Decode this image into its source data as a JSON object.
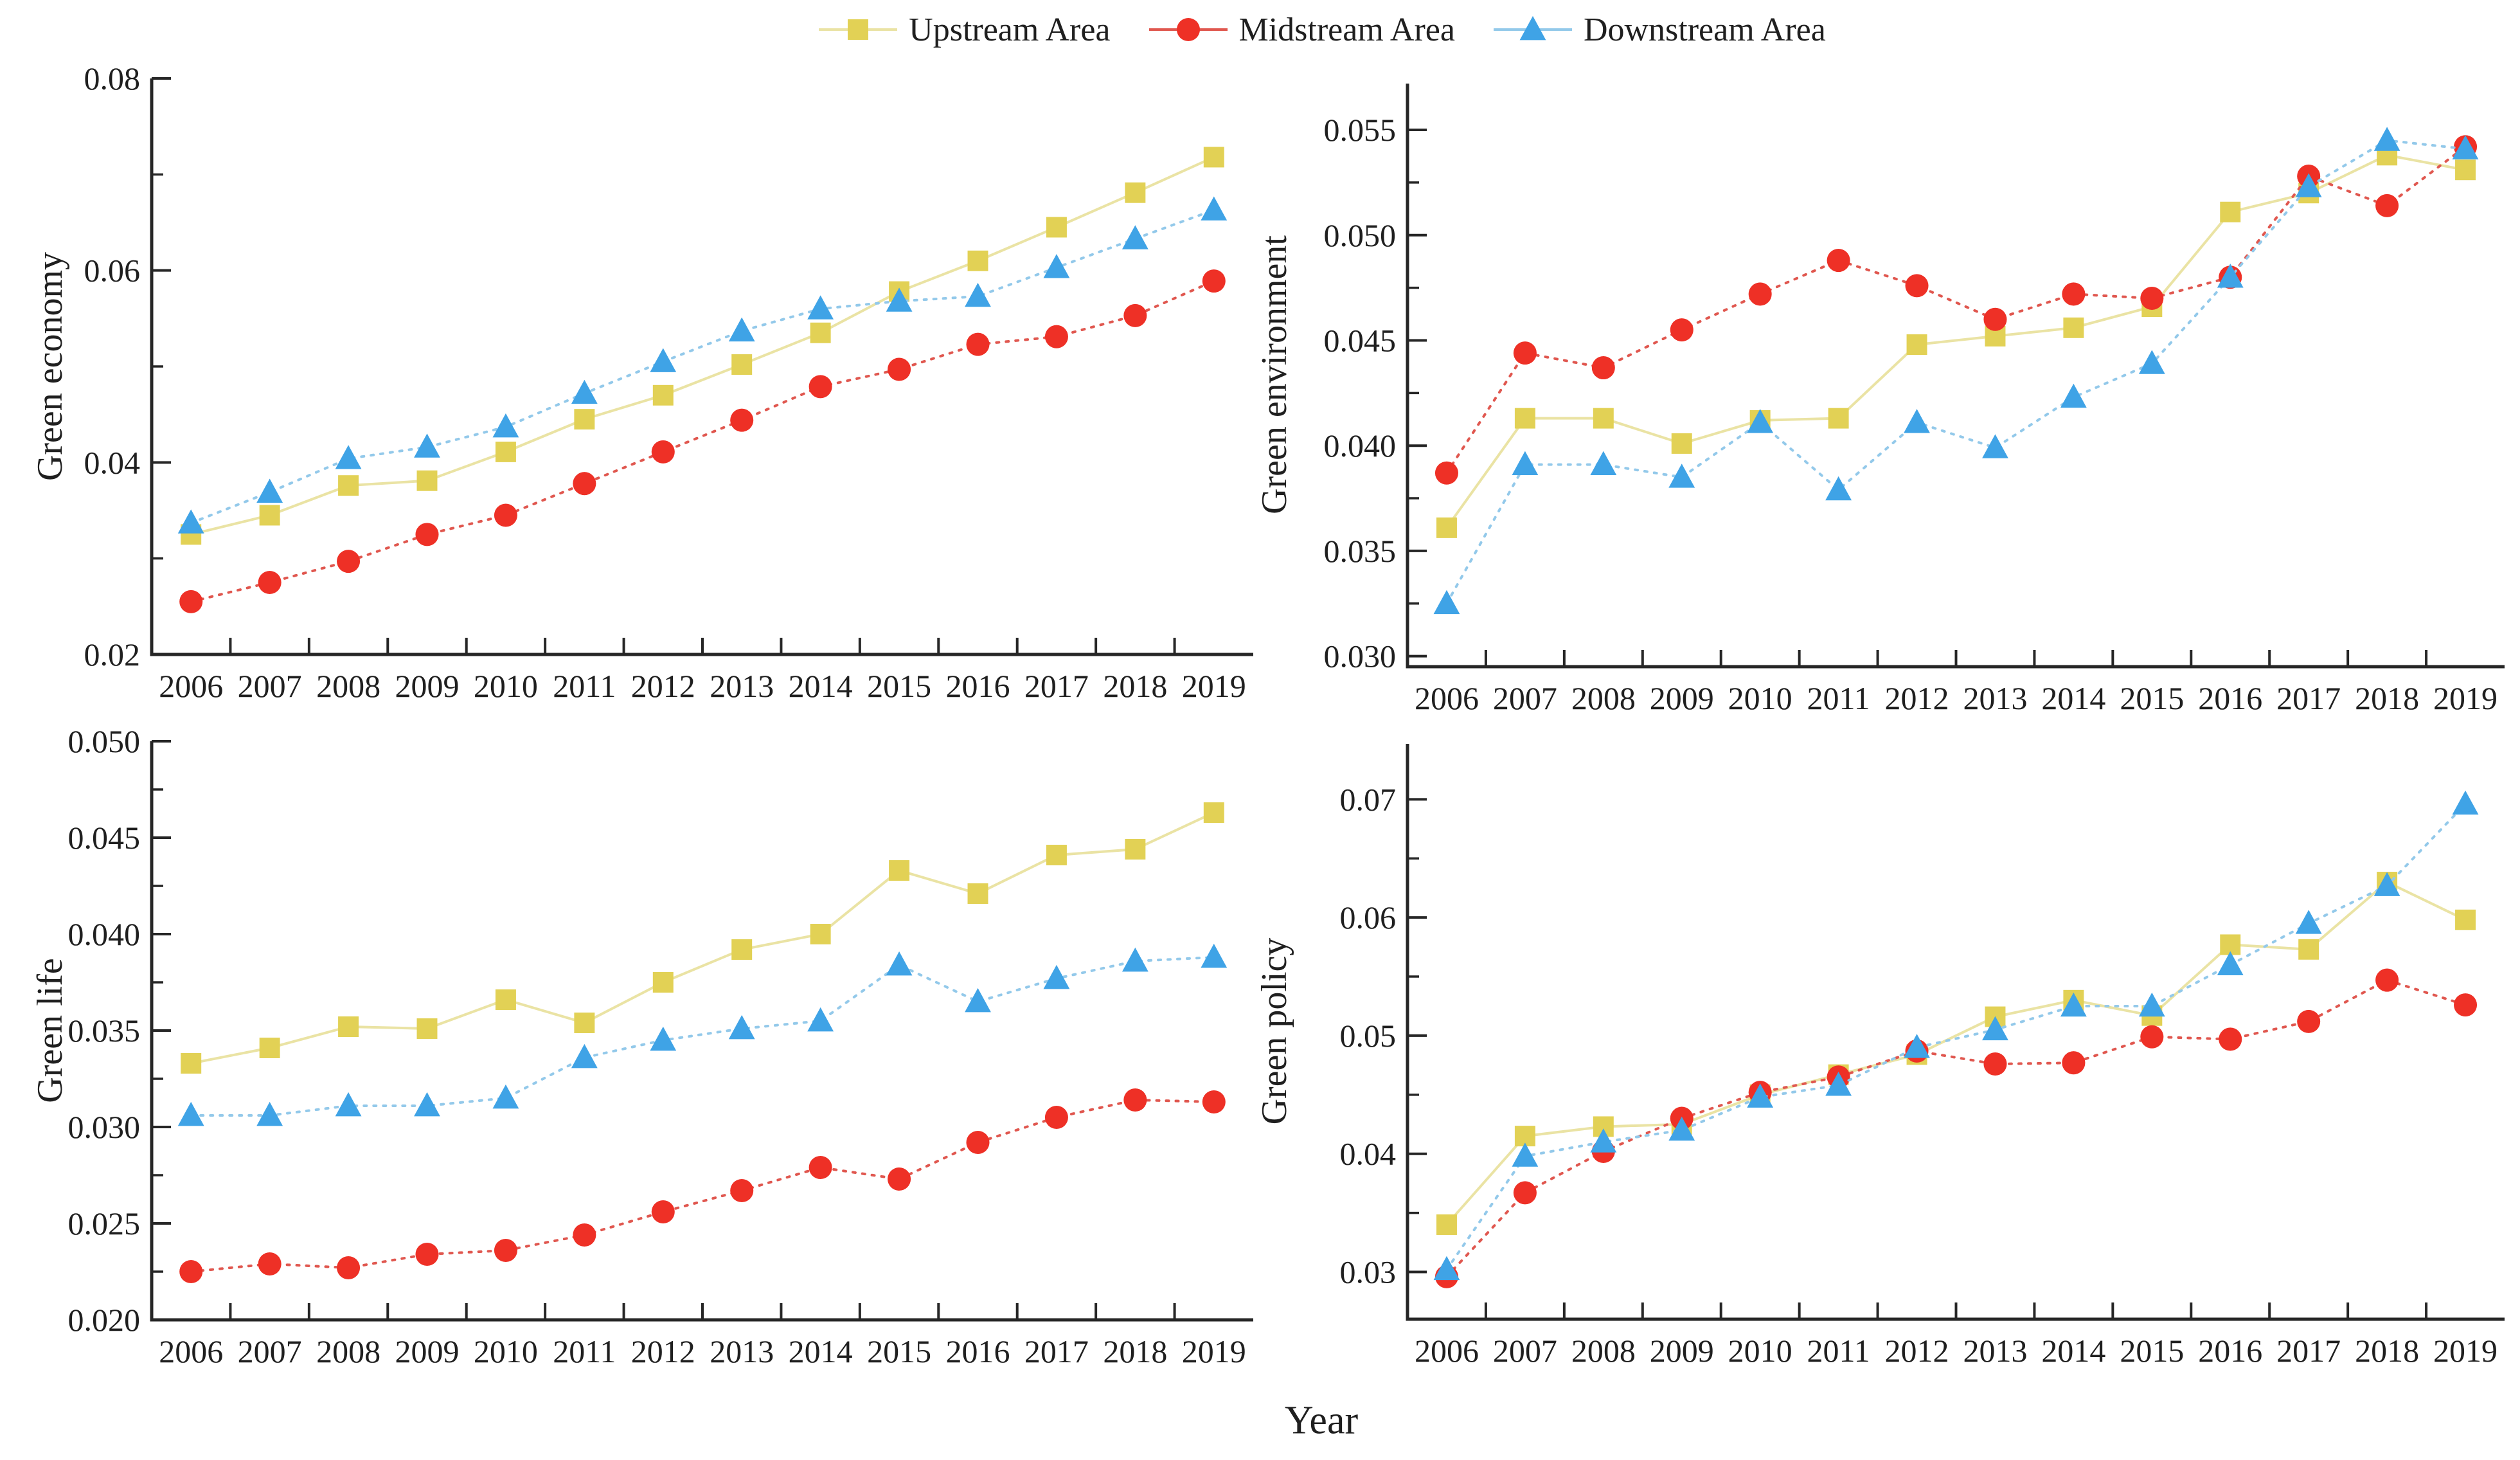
{
  "figure": {
    "xlabel": "Year",
    "background": "#ffffff",
    "text_color": "#1f1f1f",
    "axis_color": "#262626",
    "years": [
      2006,
      2007,
      2008,
      2009,
      2010,
      2011,
      2012,
      2013,
      2014,
      2015,
      2016,
      2017,
      2018,
      2019
    ],
    "xlim": [
      2005.5,
      2019.5
    ],
    "legend": {
      "position": "top-center",
      "items": [
        {
          "label": "Upstream Area",
          "marker": "square",
          "marker_color": "#e2d155",
          "line_color": "#eae3a4",
          "line_style": "solid"
        },
        {
          "label": "Midstream Area",
          "marker": "circle",
          "marker_color": "#ee3026",
          "line_color": "#e0574f",
          "line_style": "dotted"
        },
        {
          "label": "Downstream Area",
          "marker": "triangle",
          "marker_color": "#3fa3e6",
          "line_color": "#93c9ea",
          "line_style": "dotted"
        }
      ]
    }
  },
  "chart_data": [
    {
      "id": "green_economy",
      "type": "line",
      "ylabel": "Green economy",
      "ylim": [
        0.02,
        0.08
      ],
      "yticks": {
        "values": [
          0.02,
          0.04,
          0.06,
          0.08
        ],
        "labels": [
          "0.02",
          "0.04",
          "0.06",
          "0.08"
        ]
      },
      "yminor": [
        0.03,
        0.05,
        0.07
      ],
      "grid": false,
      "series": [
        {
          "name": "Upstream Area",
          "values": [
            0.0325,
            0.0345,
            0.0376,
            0.0381,
            0.0411,
            0.0445,
            0.047,
            0.0502,
            0.0535,
            0.0578,
            0.061,
            0.0645,
            0.0681,
            0.0718
          ]
        },
        {
          "name": "Midstream Area",
          "values": [
            0.0255,
            0.0275,
            0.0297,
            0.0325,
            0.0345,
            0.0378,
            0.0411,
            0.0444,
            0.0479,
            0.0497,
            0.0523,
            0.0531,
            0.0553,
            0.0589
          ]
        },
        {
          "name": "Downstream Area",
          "values": [
            0.0337,
            0.0369,
            0.0404,
            0.0416,
            0.0437,
            0.0472,
            0.0505,
            0.0537,
            0.056,
            0.0568,
            0.0573,
            0.0603,
            0.0633,
            0.0663
          ]
        }
      ]
    },
    {
      "id": "green_environment",
      "type": "line",
      "ylabel": "Green environment",
      "ylim": [
        0.0295,
        0.0572
      ],
      "yticks": {
        "values": [
          0.03,
          0.035,
          0.04,
          0.045,
          0.05,
          0.055
        ],
        "labels": [
          "0.030",
          "0.035",
          "0.040",
          "0.045",
          "0.050",
          "0.055"
        ]
      },
      "yminor": [
        0.0325,
        0.0375,
        0.0425,
        0.0475,
        0.0525
      ],
      "grid": false,
      "series": [
        {
          "name": "Upstream Area",
          "values": [
            0.0361,
            0.0413,
            0.0413,
            0.0401,
            0.0412,
            0.0413,
            0.0448,
            0.0452,
            0.0456,
            0.0466,
            0.0511,
            0.052,
            0.0538,
            0.0531
          ]
        },
        {
          "name": "Midstream Area",
          "values": [
            0.0387,
            0.0444,
            0.0437,
            0.0455,
            0.0472,
            0.0488,
            0.0476,
            0.046,
            0.0472,
            0.047,
            0.048,
            0.0528,
            0.0514,
            0.0542
          ]
        },
        {
          "name": "Downstream Area",
          "values": [
            0.0325,
            0.0391,
            0.0391,
            0.0385,
            0.0411,
            0.0379,
            0.0411,
            0.0399,
            0.0423,
            0.0439,
            0.048,
            0.0523,
            0.0545,
            0.0541
          ]
        }
      ]
    },
    {
      "id": "green_life",
      "type": "line",
      "ylabel": "Green life",
      "ylim": [
        0.02,
        0.05
      ],
      "yticks": {
        "values": [
          0.02,
          0.025,
          0.03,
          0.035,
          0.04,
          0.045,
          0.05
        ],
        "labels": [
          "0.020",
          "0.025",
          "0.030",
          "0.035",
          "0.040",
          "0.045",
          "0.050"
        ]
      },
      "yminor": [
        0.0225,
        0.0275,
        0.0325,
        0.0375,
        0.0425,
        0.0475
      ],
      "grid": false,
      "series": [
        {
          "name": "Upstream Area",
          "values": [
            0.0333,
            0.0341,
            0.0352,
            0.0351,
            0.0366,
            0.0354,
            0.0375,
            0.0392,
            0.04,
            0.0433,
            0.0421,
            0.0441,
            0.0444,
            0.0463
          ]
        },
        {
          "name": "Midstream Area",
          "values": [
            0.0225,
            0.0229,
            0.0227,
            0.0234,
            0.0236,
            0.0244,
            0.0256,
            0.0267,
            0.0279,
            0.0273,
            0.0292,
            0.0305,
            0.0314,
            0.0313
          ]
        },
        {
          "name": "Downstream Area",
          "values": [
            0.0306,
            0.0306,
            0.0311,
            0.0311,
            0.0315,
            0.0336,
            0.0345,
            0.0351,
            0.0355,
            0.0384,
            0.0365,
            0.0377,
            0.0386,
            0.0388
          ]
        }
      ]
    },
    {
      "id": "green_policy",
      "type": "line",
      "ylabel": "Green policy",
      "ylim": [
        0.026,
        0.0747
      ],
      "yticks": {
        "values": [
          0.03,
          0.04,
          0.05,
          0.06,
          0.07
        ],
        "labels": [
          "0.03",
          "0.04",
          "0.05",
          "0.06",
          "0.07"
        ]
      },
      "yminor": [
        0.035,
        0.045,
        0.055,
        0.065
      ],
      "grid": false,
      "series": [
        {
          "name": "Upstream Area",
          "values": [
            0.034,
            0.0415,
            0.0423,
            0.0425,
            0.045,
            0.0467,
            0.0484,
            0.0516,
            0.053,
            0.0517,
            0.0577,
            0.0573,
            0.063,
            0.0598
          ]
        },
        {
          "name": "Midstream Area",
          "values": [
            0.0296,
            0.0367,
            0.0402,
            0.043,
            0.0452,
            0.0465,
            0.0487,
            0.0476,
            0.0477,
            0.0499,
            0.0497,
            0.0512,
            0.0547,
            0.0526
          ]
        },
        {
          "name": "Downstream Area",
          "values": [
            0.0302,
            0.0398,
            0.041,
            0.042,
            0.0448,
            0.0458,
            0.049,
            0.0505,
            0.0525,
            0.0525,
            0.056,
            0.0595,
            0.0627,
            0.0696
          ]
        }
      ]
    }
  ]
}
